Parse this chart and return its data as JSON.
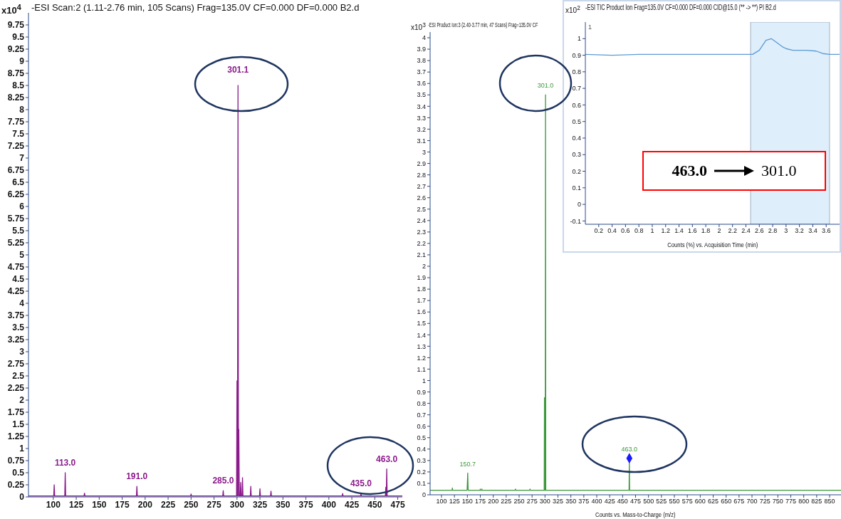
{
  "chart_data": [
    {
      "type": "line",
      "title": "-ESI Scan:2 (1.11-2.76 min, 105 Scans) Frag=135.0V CF=0.000 DF=0.000 B2.d",
      "ylabel": "x10$^{4}$",
      "x": [
        73,
        100.5,
        101,
        101.5,
        112.5,
        113,
        113.5,
        133.5,
        134,
        134.5,
        190.5,
        191,
        191.5,
        249.5,
        250,
        250.5,
        284.5,
        285,
        285.5,
        299.5,
        300,
        300.5,
        301.1,
        301.6,
        302,
        302.5,
        303.5,
        304,
        304.5,
        305.5,
        306,
        306.5,
        314.5,
        315,
        315.5,
        324.5,
        325,
        325.5,
        336.5,
        337,
        337.5,
        414.5,
        415,
        415.5,
        434.5,
        435,
        435.5,
        461.5,
        462,
        462.5,
        463,
        463.5,
        480
      ],
      "series": [
        {
          "color": "#8b1a8b",
          "marker": "none",
          "values": [
            0.02,
            0.02,
            0.25,
            0.02,
            0.02,
            0.5,
            0.02,
            0.02,
            0.08,
            0.02,
            0.02,
            0.22,
            0.02,
            0.02,
            0.06,
            0.02,
            0.02,
            0.13,
            0.02,
            0.02,
            2.4,
            0.02,
            8.5,
            0.02,
            1.4,
            0.02,
            0.02,
            0.3,
            0.02,
            0.02,
            0.4,
            0.02,
            0.02,
            0.22,
            0.02,
            0.02,
            0.17,
            0.02,
            0.02,
            0.12,
            0.02,
            0.02,
            0.07,
            0.02,
            0.02,
            0.07,
            0.02,
            0.02,
            0.2,
            0.02,
            0.58,
            0.02,
            0.02
          ]
        }
      ],
      "xlim": [
        73,
        480
      ],
      "xticks": [
        100,
        125,
        150,
        175,
        200,
        225,
        250,
        275,
        300,
        325,
        350,
        375,
        400,
        425,
        450,
        475
      ],
      "ylim": [
        0,
        10
      ],
      "yticks": [
        0,
        0.25,
        0.5,
        0.75,
        1,
        1.25,
        1.5,
        1.75,
        2,
        2.25,
        2.5,
        2.75,
        3,
        3.25,
        3.5,
        3.75,
        4,
        4.25,
        4.5,
        4.75,
        5,
        5.25,
        5.5,
        5.75,
        6,
        6.25,
        6.5,
        6.75,
        7,
        7.25,
        7.5,
        7.75,
        8,
        8.25,
        8.5,
        8.75,
        9,
        9.25,
        9.5,
        9.75
      ],
      "annotations": [
        {
          "text": "113.0",
          "x": 113,
          "y": 0.5
        },
        {
          "text": "191.0",
          "x": 191,
          "y": 0.22
        },
        {
          "text": "285.0",
          "x": 285,
          "y": 0.13
        },
        {
          "text": "301.1",
          "x": 301.1,
          "y": 8.5
        },
        {
          "text": "435.0",
          "x": 435,
          "y": 0.07
        },
        {
          "text": "463.0",
          "x": 463,
          "y": 0.58
        }
      ]
    },
    {
      "type": "line",
      "title": "-ESI Product Ion:3 (2.40-3.77 min, 47 Scans) Frag=135.0V CF",
      "ylabel": "x10$^{3}$",
      "xlabel": "Counts vs. Mass-to-Charge (m/z)",
      "x": [
        78,
        120.5,
        121,
        121.5,
        149.5,
        150.7,
        151.5,
        174.5,
        175,
        175.5,
        177.5,
        178,
        178.5,
        242.5,
        243,
        243.5,
        270.5,
        271,
        271.5,
        298.5,
        299,
        299.5,
        300.5,
        301,
        301.5,
        462.5,
        463,
        463.5,
        872
      ],
      "series": [
        {
          "color": "#3a9a3a",
          "marker": "none",
          "values": [
            0.04,
            0.04,
            0.06,
            0.04,
            0.04,
            0.19,
            0.04,
            0.04,
            0.05,
            0.04,
            0.04,
            0.05,
            0.04,
            0.04,
            0.05,
            0.04,
            0.04,
            0.05,
            0.04,
            0.04,
            0.85,
            0.04,
            0.04,
            3.5,
            0.04,
            0.04,
            0.28,
            0.04,
            0.04
          ]
        },
        {
          "type": "scatter",
          "color": "#1a1aff",
          "marker": "diamond",
          "x": [
            463
          ],
          "values": [
            0.32
          ]
        }
      ],
      "xlim": [
        78,
        872
      ],
      "xticks": [
        100,
        125,
        150,
        175,
        200,
        225,
        250,
        275,
        300,
        325,
        350,
        375,
        400,
        425,
        450,
        475,
        500,
        525,
        550,
        575,
        600,
        625,
        650,
        675,
        700,
        725,
        750,
        775,
        800,
        825,
        850
      ],
      "ylim": [
        0,
        4.05
      ],
      "yticks": [
        0,
        0.1,
        0.2,
        0.3,
        0.4,
        0.5,
        0.6,
        0.7,
        0.8,
        0.9,
        1,
        1.1,
        1.2,
        1.3,
        1.4,
        1.5,
        1.6,
        1.7,
        1.8,
        1.9,
        2,
        2.1,
        2.2,
        2.3,
        2.4,
        2.5,
        2.6,
        2.7,
        2.8,
        2.9,
        3,
        3.1,
        3.2,
        3.3,
        3.4,
        3.5,
        3.6,
        3.7,
        3.8,
        3.9,
        4
      ],
      "annotations": [
        {
          "text": "301.0",
          "x": 301,
          "y": 3.5
        },
        {
          "text": "150.7",
          "x": 150.7,
          "y": 0.19
        },
        {
          "text": "463.0",
          "x": 463,
          "y": 0.32
        }
      ]
    },
    {
      "type": "line",
      "title": "-ESI TIC Product Ion Frag=135.0V CF=0.000 DF=0.000 CID@15.0 (** -> **) PI B2.d",
      "ylabel": "x10$^{2}$",
      "xlabel": "Counts (%) vs. Acquisition Time (min)",
      "x": [
        0,
        0.4,
        0.8,
        2.5,
        2.6,
        2.7,
        2.78,
        2.85,
        2.95,
        3,
        3.1,
        3.3,
        3.45,
        3.55,
        3.65,
        3.8
      ],
      "series": [
        {
          "color": "#5b9bd5",
          "marker": "none",
          "values": [
            0.905,
            0.9,
            0.905,
            0.905,
            0.93,
            0.99,
            1,
            0.98,
            0.95,
            0.94,
            0.93,
            0.93,
            0.925,
            0.91,
            0.905,
            0.905
          ]
        }
      ],
      "xlim": [
        0,
        3.8
      ],
      "xticks": [
        0.2,
        0.4,
        0.6,
        0.8,
        1,
        1.2,
        1.4,
        1.6,
        1.8,
        2,
        2.2,
        2.4,
        2.6,
        2.8,
        3,
        3.2,
        3.4,
        3.6
      ],
      "ylim": [
        -0.12,
        1.1
      ],
      "yticks": [
        -0.1,
        0,
        0.1,
        0.2,
        0.3,
        0.4,
        0.5,
        0.6,
        0.7,
        0.8,
        0.9,
        1
      ],
      "bands": [
        {
          "axis": "x",
          "from": 2.47,
          "to": 3.65,
          "color": "#deeefa"
        }
      ],
      "annotations": [
        "1",
        "463.0",
        "301.0"
      ]
    }
  ]
}
